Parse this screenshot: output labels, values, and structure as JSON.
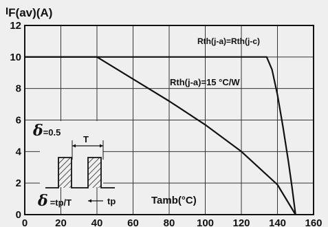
{
  "chart_data": {
    "type": "line",
    "title": "",
    "ylabel": "I",
    "ylabel_sub": "F(av)",
    "ylabel_unit": "(A)",
    "xlabel": "Tamb(°C)",
    "xlim": [
      0,
      160
    ],
    "ylim": [
      0,
      12
    ],
    "x_ticks": [
      0,
      20,
      40,
      60,
      80,
      100,
      120,
      140,
      160
    ],
    "y_ticks": [
      0,
      2,
      4,
      6,
      8,
      10,
      12
    ],
    "grid": true,
    "series": [
      {
        "name": "Rth(j-a)=Rth(j-c)",
        "x": [
          0,
          134,
          137,
          140,
          143,
          146,
          148,
          150
        ],
        "y": [
          10,
          10,
          9.2,
          7.6,
          5.6,
          3.4,
          1.8,
          0
        ]
      },
      {
        "name": "Rth(j-a)=15 °C/W",
        "x": [
          0,
          40,
          60,
          80,
          100,
          120,
          140,
          150
        ],
        "y": [
          10,
          10,
          8.6,
          7.2,
          5.7,
          4.0,
          1.9,
          0
        ]
      }
    ],
    "annotations": {
      "delta_symbol": "δ",
      "delta_value": "=0.5",
      "period": "T",
      "delta_formula": "=tp/T",
      "pulse_width": "tp"
    },
    "colors": {
      "line": "#111111",
      "grid": "#333333",
      "background": "#efefef"
    }
  }
}
